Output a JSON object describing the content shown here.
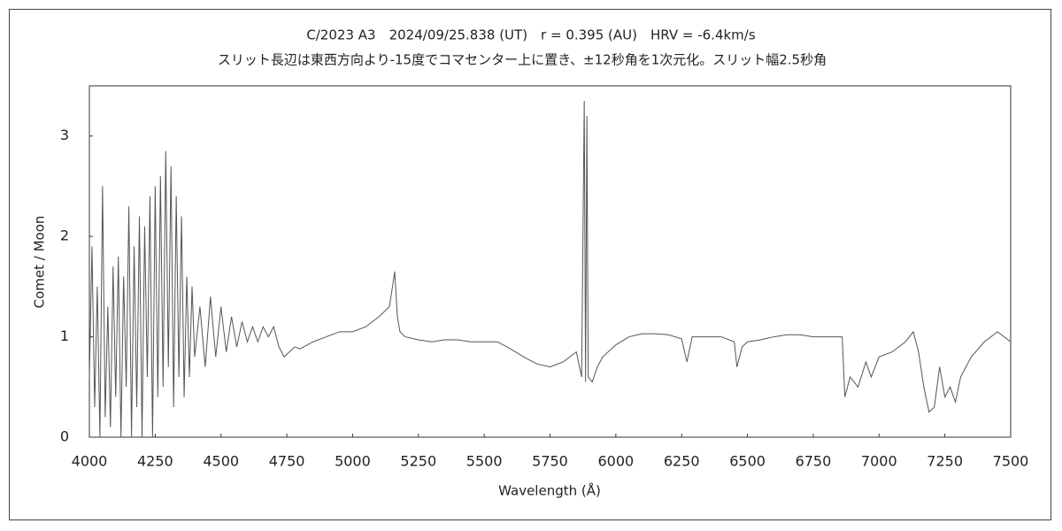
{
  "chart_data": {
    "type": "line",
    "title": "C/2023 A3　2024/09/25.838 (UT)　r = 0.395 (AU)　HRV = -6.4km/s",
    "subtitle": "スリット長辺は東西方向より-15度でコマセンター上に置き、±12秒角を1次元化。スリット幅2.5秒角",
    "x_label": "Wavelength (Å)",
    "y_label": "Comet / Moon",
    "color": "#555555",
    "x": [
      4000,
      4010,
      4020,
      4030,
      4040,
      4050,
      4060,
      4070,
      4080,
      4090,
      4100,
      4110,
      4120,
      4130,
      4140,
      4150,
      4160,
      4170,
      4180,
      4190,
      4200,
      4210,
      4220,
      4230,
      4240,
      4250,
      4260,
      4270,
      4280,
      4290,
      4300,
      4310,
      4320,
      4330,
      4340,
      4350,
      4360,
      4370,
      4380,
      4390,
      4400,
      4420,
      4440,
      4460,
      4480,
      4500,
      4520,
      4540,
      4560,
      4580,
      4600,
      4620,
      4640,
      4660,
      4680,
      4700,
      4720,
      4740,
      4760,
      4780,
      4800,
      4850,
      4900,
      4950,
      5000,
      5050,
      5100,
      5140,
      5160,
      5170,
      5180,
      5200,
      5250,
      5300,
      5350,
      5400,
      5450,
      5500,
      5550,
      5600,
      5650,
      5700,
      5750,
      5800,
      5850,
      5870,
      5880,
      5885,
      5890,
      5895,
      5910,
      5930,
      5950,
      6000,
      6050,
      6100,
      6150,
      6200,
      6250,
      6270,
      6290,
      6350,
      6400,
      6450,
      6460,
      6480,
      6500,
      6550,
      6600,
      6650,
      6700,
      6750,
      6800,
      6860,
      6870,
      6890,
      6920,
      6950,
      6970,
      7000,
      7050,
      7100,
      7130,
      7150,
      7170,
      7190,
      7210,
      7230,
      7250,
      7270,
      7290,
      7310,
      7350,
      7400,
      7450,
      7500
    ],
    "values": [
      0.6,
      1.9,
      0.3,
      1.5,
      0.0,
      2.5,
      0.2,
      1.3,
      0.1,
      1.7,
      0.4,
      1.8,
      0.0,
      1.6,
      0.5,
      2.3,
      0.0,
      1.9,
      0.3,
      2.2,
      0.0,
      2.1,
      0.6,
      2.4,
      0.0,
      2.5,
      0.4,
      2.6,
      0.5,
      2.85,
      0.7,
      2.7,
      0.3,
      2.4,
      0.6,
      2.2,
      0.4,
      1.6,
      0.6,
      1.5,
      0.8,
      1.3,
      0.7,
      1.4,
      0.8,
      1.3,
      0.85,
      1.2,
      0.9,
      1.15,
      0.95,
      1.1,
      0.95,
      1.1,
      1.0,
      1.1,
      0.9,
      0.8,
      0.85,
      0.9,
      0.88,
      0.95,
      1.0,
      1.05,
      1.05,
      1.1,
      1.2,
      1.3,
      1.65,
      1.2,
      1.05,
      1.0,
      0.97,
      0.95,
      0.97,
      0.97,
      0.95,
      0.95,
      0.95,
      0.88,
      0.8,
      0.73,
      0.7,
      0.75,
      0.85,
      0.6,
      3.35,
      0.55,
      3.2,
      0.6,
      0.55,
      0.7,
      0.8,
      0.92,
      1.0,
      1.03,
      1.03,
      1.02,
      0.98,
      0.75,
      1.0,
      1.0,
      1.0,
      0.95,
      0.7,
      0.9,
      0.95,
      0.97,
      1.0,
      1.02,
      1.02,
      1.0,
      1.0,
      1.0,
      0.4,
      0.6,
      0.5,
      0.75,
      0.6,
      0.8,
      0.85,
      0.95,
      1.05,
      0.85,
      0.5,
      0.25,
      0.3,
      0.7,
      0.4,
      0.5,
      0.35,
      0.6,
      0.8,
      0.95,
      1.05,
      0.95
    ],
    "xlim": [
      4000,
      7500
    ],
    "xticks": [
      4000,
      4250,
      4500,
      4750,
      5000,
      5250,
      5500,
      5750,
      6000,
      6250,
      6500,
      6750,
      7000,
      7250,
      7500
    ],
    "ylim": [
      0,
      3.5
    ],
    "yticks": [
      0,
      1,
      2,
      3
    ],
    "grid": false
  }
}
